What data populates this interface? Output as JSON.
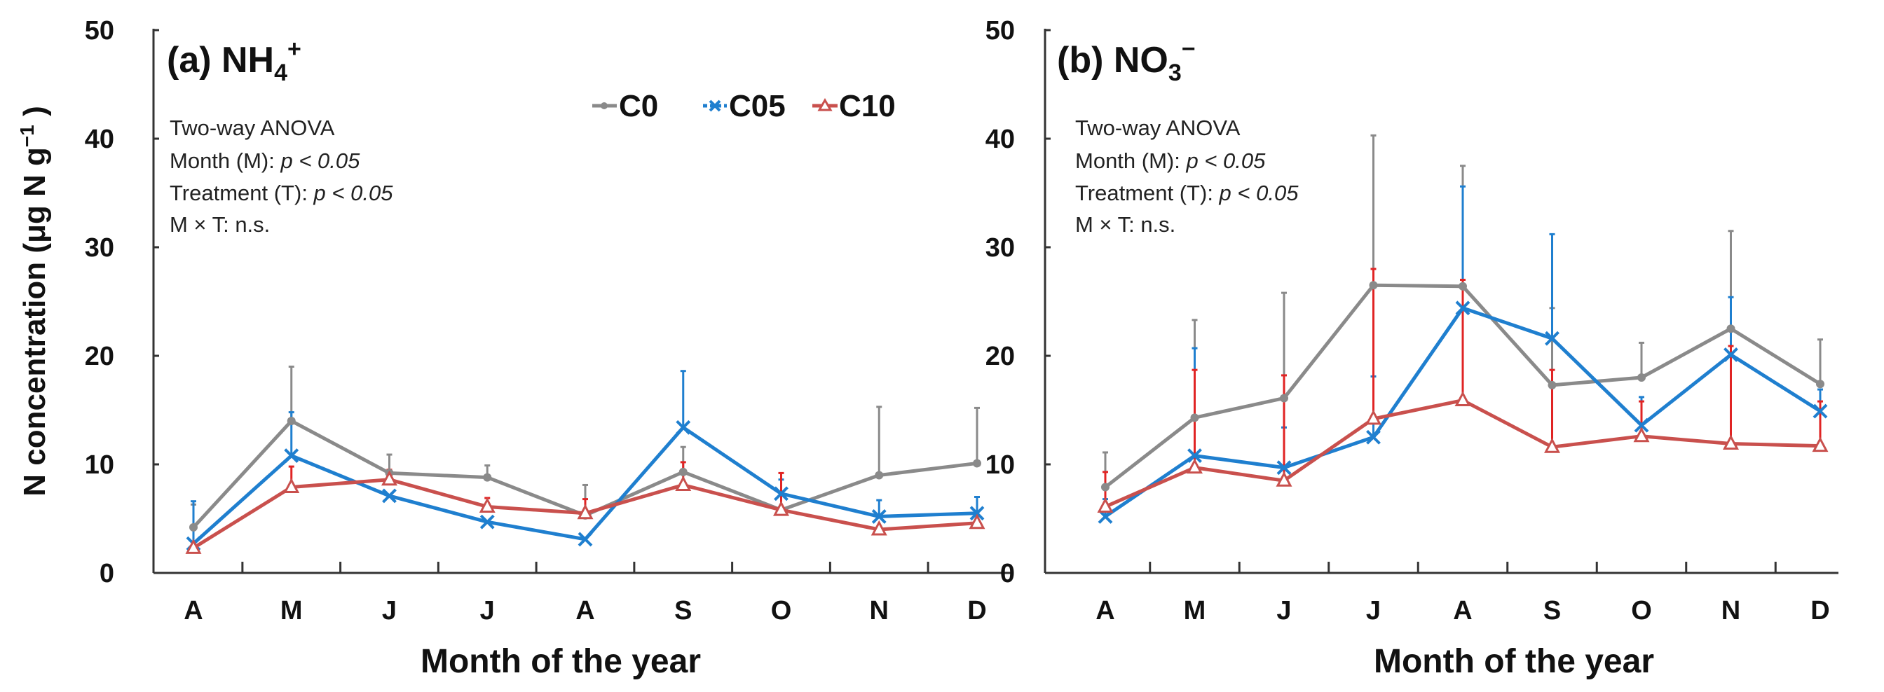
{
  "chart_data": [
    {
      "type": "line",
      "title": "(a) NH",
      "title_sub": "4",
      "title_sup": "+",
      "ylabel": "N concentration (μg N g",
      "ylabel_sup": "−1",
      "ylabel_end": " )",
      "xlabel": "Month of the year",
      "categories": [
        "A",
        "M",
        "J",
        "J",
        "A",
        "S",
        "O",
        "N",
        "D"
      ],
      "ylim": [
        0,
        50
      ],
      "yticks": [
        "0",
        "10",
        "20",
        "30",
        "40",
        "50"
      ],
      "annotations": [
        "Two-way ANOVA",
        "Month (M): ",
        "Treatment (T): ",
        "M × T: n.s."
      ],
      "annotation_p": "p < 0.05",
      "legend": {
        "placement": "top-right",
        "entries": [
          "C0",
          "C05",
          "C10"
        ]
      },
      "series": [
        {
          "name": "C0",
          "color": "#8a8a8a",
          "marker": "dot",
          "values": [
            4.2,
            14.0,
            9.2,
            8.8,
            5.3,
            9.3,
            5.8,
            9.0,
            10.1
          ],
          "err_top": [
            6.3,
            19.0,
            10.9,
            9.9,
            8.1,
            11.6,
            null,
            15.3,
            15.2
          ]
        },
        {
          "name": "C05",
          "color": "#1f7fcf",
          "marker": "x",
          "values": [
            2.7,
            10.8,
            7.1,
            4.7,
            3.1,
            13.4,
            7.3,
            5.2,
            5.5
          ],
          "err_top": [
            6.6,
            14.8,
            null,
            null,
            null,
            18.6,
            8.6,
            6.7,
            7.0
          ]
        },
        {
          "name": "C10",
          "color": "#c9504d",
          "marker": "triangle",
          "values": [
            2.3,
            7.9,
            8.6,
            6.1,
            5.5,
            8.1,
            5.8,
            4.0,
            4.6
          ],
          "err_top": [
            null,
            9.8,
            9.5,
            6.9,
            6.8,
            10.2,
            9.2,
            null,
            null
          ]
        }
      ]
    },
    {
      "type": "line",
      "title": "(b) NO",
      "title_sub": "3",
      "title_sup": "−",
      "xlabel": "Month of the year",
      "categories": [
        "A",
        "M",
        "J",
        "J",
        "A",
        "S",
        "O",
        "N",
        "D"
      ],
      "ylim": [
        0,
        50
      ],
      "yticks": [
        "0",
        "10",
        "20",
        "30",
        "40",
        "50"
      ],
      "annotations": [
        "Two-way ANOVA",
        "Month (M): ",
        "Treatment (T): ",
        "M × T: n.s."
      ],
      "annotation_p": "p < 0.05",
      "series": [
        {
          "name": "C0",
          "color": "#8a8a8a",
          "marker": "dot",
          "values": [
            7.9,
            14.3,
            16.1,
            26.5,
            26.4,
            17.3,
            18.0,
            22.5,
            17.4
          ],
          "err_top": [
            11.1,
            23.3,
            25.8,
            40.3,
            37.5,
            24.4,
            21.2,
            31.5,
            21.5
          ]
        },
        {
          "name": "C05",
          "color": "#1f7fcf",
          "marker": "x",
          "values": [
            5.2,
            10.8,
            9.7,
            12.5,
            24.4,
            21.6,
            13.6,
            20.1,
            14.9
          ],
          "err_top": [
            6.8,
            20.7,
            13.4,
            18.1,
            35.6,
            31.2,
            16.2,
            25.4,
            16.9
          ]
        },
        {
          "name": "C10",
          "color": "#c9504d",
          "marker": "triangle",
          "values": [
            6.1,
            9.7,
            8.5,
            14.2,
            15.9,
            11.6,
            12.6,
            11.9,
            11.7
          ],
          "err_top": [
            9.3,
            18.7,
            18.2,
            28.0,
            27.0,
            18.7,
            15.8,
            20.9,
            15.8
          ]
        }
      ]
    }
  ]
}
